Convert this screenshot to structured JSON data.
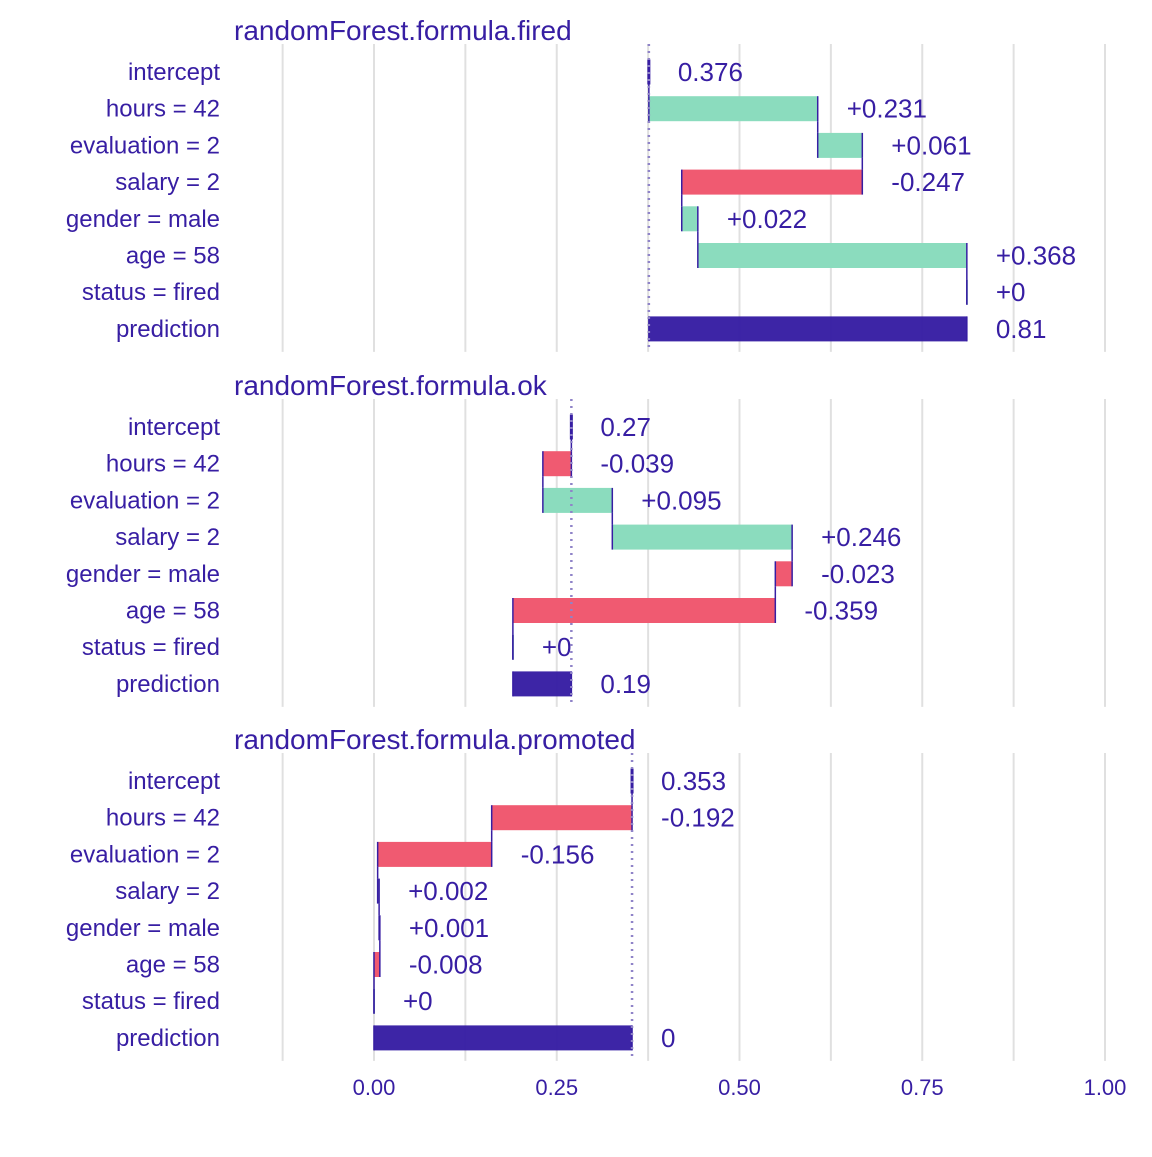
{
  "colors": {
    "text": "#371ea3",
    "positive": "#8bdcbe",
    "negative": "#f05a71",
    "total": "#371ea3",
    "grid": "#e0e0e0",
    "baseline": "#8f83c8"
  },
  "chart_data": {
    "type": "bar",
    "subtype": "break-down waterfall",
    "x_ticks": [
      "0.00",
      "0.25",
      "0.50",
      "0.75",
      "1.00"
    ],
    "xlim": [
      -0.12,
      1.0
    ],
    "grid": true,
    "legend": "none",
    "categories": [
      "intercept",
      "hours = 42",
      "evaluation = 2",
      "salary = 2",
      "gender = male",
      "age = 58",
      "status = fired",
      "prediction"
    ],
    "panels": [
      {
        "title": "randomForest.formula.fired",
        "intercept": 0.376,
        "bars": [
          {
            "label": "intercept",
            "start": 0.376,
            "end": 0.376,
            "kind": "intercept",
            "text": "0.376"
          },
          {
            "label": "hours = 42",
            "start": 0.376,
            "end": 0.607,
            "kind": "positive",
            "text": "+0.231"
          },
          {
            "label": "evaluation = 2",
            "start": 0.607,
            "end": 0.668,
            "kind": "positive",
            "text": "+0.061"
          },
          {
            "label": "salary = 2",
            "start": 0.668,
            "end": 0.421,
            "kind": "negative",
            "text": "-0.247"
          },
          {
            "label": "gender = male",
            "start": 0.421,
            "end": 0.443,
            "kind": "positive",
            "text": "+0.022"
          },
          {
            "label": "age = 58",
            "start": 0.443,
            "end": 0.811,
            "kind": "positive",
            "text": "+0.368"
          },
          {
            "label": "status = fired",
            "start": 0.811,
            "end": 0.811,
            "kind": "positive",
            "text": "+0"
          },
          {
            "label": "prediction",
            "start": 0.376,
            "end": 0.811,
            "kind": "prediction",
            "text": "0.81"
          }
        ]
      },
      {
        "title": "randomForest.formula.ok",
        "intercept": 0.27,
        "bars": [
          {
            "label": "intercept",
            "start": 0.27,
            "end": 0.27,
            "kind": "intercept",
            "text": "0.27"
          },
          {
            "label": "hours = 42",
            "start": 0.27,
            "end": 0.231,
            "kind": "negative",
            "text": "-0.039"
          },
          {
            "label": "evaluation = 2",
            "start": 0.231,
            "end": 0.326,
            "kind": "positive",
            "text": "+0.095"
          },
          {
            "label": "salary = 2",
            "start": 0.326,
            "end": 0.572,
            "kind": "positive",
            "text": "+0.246"
          },
          {
            "label": "gender = male",
            "start": 0.572,
            "end": 0.549,
            "kind": "negative",
            "text": "-0.023"
          },
          {
            "label": "age = 58",
            "start": 0.549,
            "end": 0.19,
            "kind": "negative",
            "text": "-0.359"
          },
          {
            "label": "status = fired",
            "start": 0.19,
            "end": 0.19,
            "kind": "positive",
            "text": "+0"
          },
          {
            "label": "prediction",
            "start": 0.27,
            "end": 0.19,
            "kind": "prediction",
            "text": "0.19"
          }
        ]
      },
      {
        "title": "randomForest.formula.promoted",
        "intercept": 0.353,
        "bars": [
          {
            "label": "intercept",
            "start": 0.353,
            "end": 0.353,
            "kind": "intercept",
            "text": "0.353"
          },
          {
            "label": "hours = 42",
            "start": 0.353,
            "end": 0.161,
            "kind": "negative",
            "text": "-0.192"
          },
          {
            "label": "evaluation = 2",
            "start": 0.161,
            "end": 0.005,
            "kind": "negative",
            "text": "-0.156"
          },
          {
            "label": "salary = 2",
            "start": 0.005,
            "end": 0.007,
            "kind": "positive",
            "text": "+0.002"
          },
          {
            "label": "gender = male",
            "start": 0.007,
            "end": 0.008,
            "kind": "positive",
            "text": "+0.001"
          },
          {
            "label": "age = 58",
            "start": 0.008,
            "end": 0.0,
            "kind": "negative",
            "text": "-0.008"
          },
          {
            "label": "status = fired",
            "start": 0.0,
            "end": 0.0,
            "kind": "positive",
            "text": "+0"
          },
          {
            "label": "prediction",
            "start": 0.353,
            "end": 0.0,
            "kind": "prediction",
            "text": "0"
          }
        ]
      }
    ]
  }
}
